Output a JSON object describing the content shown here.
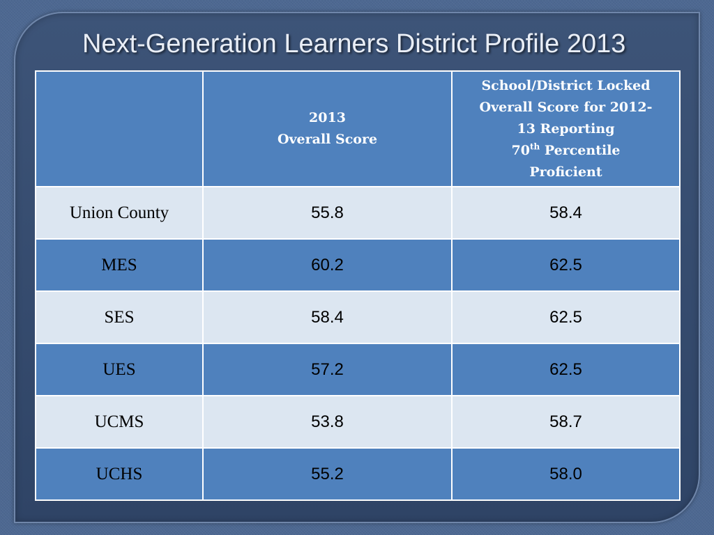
{
  "slide": {
    "title": "Next-Generation Learners District Profile 2013"
  },
  "table": {
    "header": {
      "col0": "",
      "col1_line1": "2013",
      "col1_line2": "Overall Score",
      "col2_line1": "School/District Locked",
      "col2_line2": "Overall Score for 2012-",
      "col2_line3": "13 Reporting",
      "col2_line4_base": "70",
      "col2_line4_sup": "th",
      "col2_line4_rest": " Percentile",
      "col2_line5": "Proficient"
    },
    "rows": [
      {
        "name": "Union County",
        "score_2013": "55.8",
        "locked_score": "58.4"
      },
      {
        "name": "MES",
        "score_2013": "60.2",
        "locked_score": "62.5"
      },
      {
        "name": "SES",
        "score_2013": "58.4",
        "locked_score": "62.5"
      },
      {
        "name": "UES",
        "score_2013": "57.2",
        "locked_score": "62.5"
      },
      {
        "name": "UCMS",
        "score_2013": "53.8",
        "locked_score": "58.7"
      },
      {
        "name": "UCHS",
        "score_2013": "55.2",
        "locked_score": "58.0"
      }
    ]
  },
  "colors": {
    "background": "#4d6891",
    "panel": "#3d5478",
    "header_fill": "#4f81bd",
    "row_light": "#dce6f1",
    "row_dark": "#4f81bd",
    "title_text": "#e9eef6"
  }
}
